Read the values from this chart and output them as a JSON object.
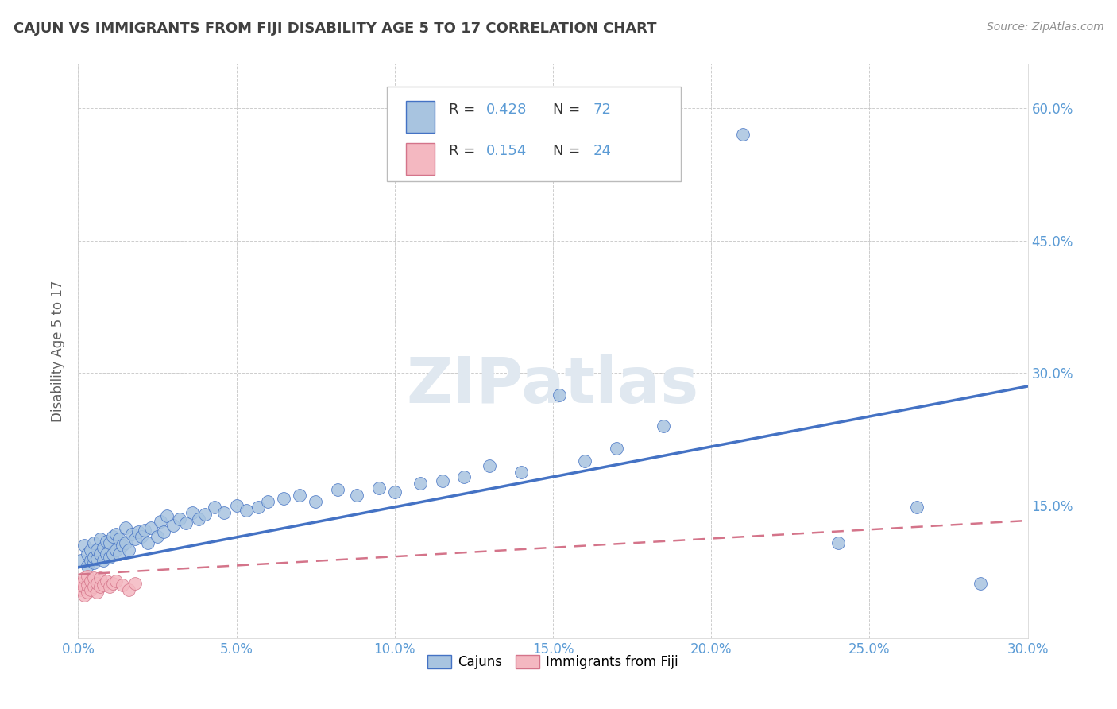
{
  "title": "CAJUN VS IMMIGRANTS FROM FIJI DISABILITY AGE 5 TO 17 CORRELATION CHART",
  "source": "Source: ZipAtlas.com",
  "ylabel_label": "Disability Age 5 to 17",
  "xlim": [
    0.0,
    0.3
  ],
  "ylim": [
    0.0,
    0.65
  ],
  "cajun_R": 0.428,
  "cajun_N": 72,
  "fiji_R": 0.154,
  "fiji_N": 24,
  "cajun_color": "#a8c4e0",
  "cajun_line_color": "#4472c4",
  "fiji_color": "#f4b8c1",
  "fiji_line_color": "#d4748a",
  "background_color": "#ffffff",
  "grid_color": "#c8c8c8",
  "title_color": "#404040",
  "cajun_line_start_y": 0.08,
  "cajun_line_end_y": 0.285,
  "fiji_line_start_y": 0.072,
  "fiji_line_end_y": 0.133
}
